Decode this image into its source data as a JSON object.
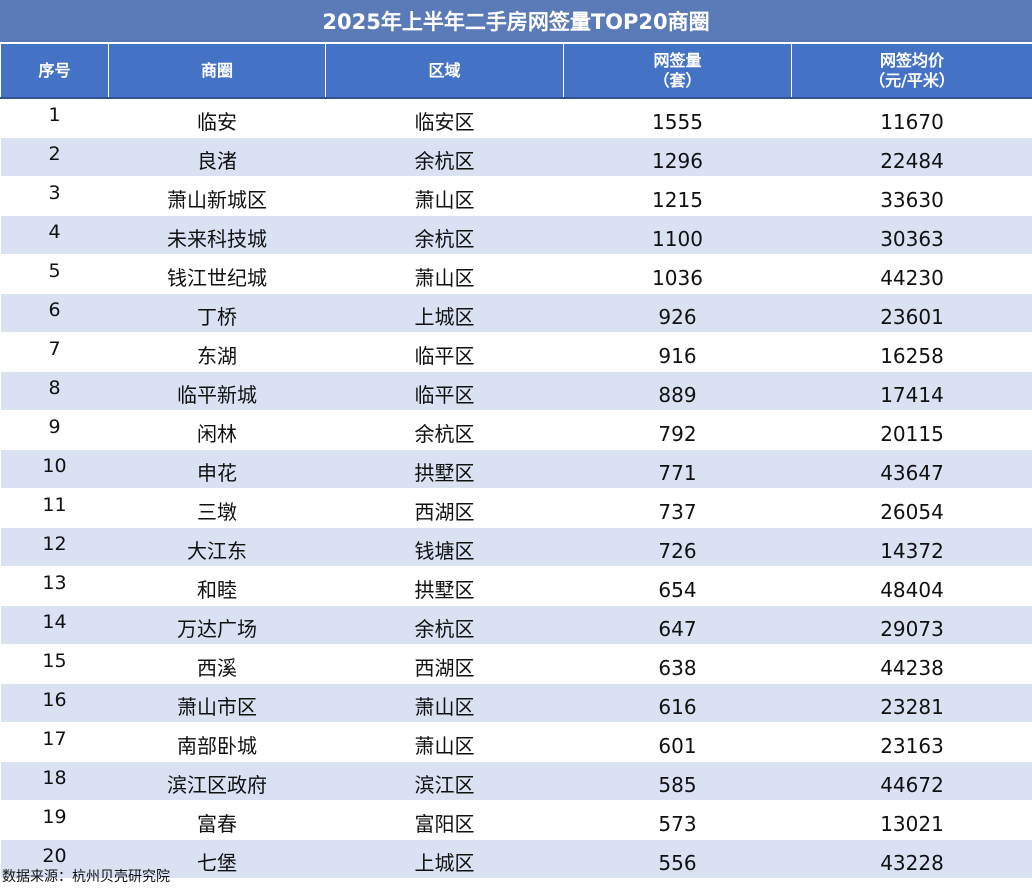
{
  "title": "2025年上半年二手房网签量TOP20商圈",
  "columns": [
    {
      "lines": [
        "序号"
      ]
    },
    {
      "lines": [
        "商圈"
      ]
    },
    {
      "lines": [
        "区域"
      ]
    },
    {
      "lines": [
        "网签量",
        "（套）"
      ]
    },
    {
      "lines": [
        "网签均价",
        "（元/平米）"
      ]
    }
  ],
  "rows": [
    {
      "rank": "1",
      "area": "临安",
      "district": "临安区",
      "deals": "1555",
      "price": "11670"
    },
    {
      "rank": "2",
      "area": "良渚",
      "district": "余杭区",
      "deals": "1296",
      "price": "22484"
    },
    {
      "rank": "3",
      "area": "萧山新城区",
      "district": "萧山区",
      "deals": "1215",
      "price": "33630"
    },
    {
      "rank": "4",
      "area": "未来科技城",
      "district": "余杭区",
      "deals": "1100",
      "price": "30363"
    },
    {
      "rank": "5",
      "area": "钱江世纪城",
      "district": "萧山区",
      "deals": "1036",
      "price": "44230"
    },
    {
      "rank": "6",
      "area": "丁桥",
      "district": "上城区",
      "deals": "926",
      "price": "23601"
    },
    {
      "rank": "7",
      "area": "东湖",
      "district": "临平区",
      "deals": "916",
      "price": "16258"
    },
    {
      "rank": "8",
      "area": "临平新城",
      "district": "临平区",
      "deals": "889",
      "price": "17414"
    },
    {
      "rank": "9",
      "area": "闲林",
      "district": "余杭区",
      "deals": "792",
      "price": "20115"
    },
    {
      "rank": "10",
      "area": "申花",
      "district": "拱墅区",
      "deals": "771",
      "price": "43647"
    },
    {
      "rank": "11",
      "area": "三墩",
      "district": "西湖区",
      "deals": "737",
      "price": "26054"
    },
    {
      "rank": "12",
      "area": "大江东",
      "district": "钱塘区",
      "deals": "726",
      "price": "14372"
    },
    {
      "rank": "13",
      "area": "和睦",
      "district": "拱墅区",
      "deals": "654",
      "price": "48404"
    },
    {
      "rank": "14",
      "area": "万达广场",
      "district": "余杭区",
      "deals": "647",
      "price": "29073"
    },
    {
      "rank": "15",
      "area": "西溪",
      "district": "西湖区",
      "deals": "638",
      "price": "44238"
    },
    {
      "rank": "16",
      "area": "萧山市区",
      "district": "萧山区",
      "deals": "616",
      "price": "23281"
    },
    {
      "rank": "17",
      "area": "南部卧城",
      "district": "萧山区",
      "deals": "601",
      "price": "23163"
    },
    {
      "rank": "18",
      "area": "滨江区政府",
      "district": "滨江区",
      "deals": "585",
      "price": "44672"
    },
    {
      "rank": "19",
      "area": "富春",
      "district": "富阳区",
      "deals": "573",
      "price": "13021"
    },
    {
      "rank": "20",
      "area": "七堡",
      "district": "上城区",
      "deals": "556",
      "price": "43228"
    }
  ],
  "source": "数据来源：杭州贝壳研究院",
  "colors": {
    "title_bg": "#5b7bb8",
    "header_bg": "#4472c4",
    "stripe": "#d9e1f2",
    "header_text": "#ffffff"
  },
  "chart_data": {
    "type": "table",
    "title": "2025年上半年二手房网签量TOP20商圈",
    "columns": [
      "序号",
      "商圈",
      "区域",
      "网签量（套）",
      "网签均价（元/平米）"
    ],
    "rows": [
      [
        1,
        "临安",
        "临安区",
        1555,
        11670
      ],
      [
        2,
        "良渚",
        "余杭区",
        1296,
        22484
      ],
      [
        3,
        "萧山新城区",
        "萧山区",
        1215,
        33630
      ],
      [
        4,
        "未来科技城",
        "余杭区",
        1100,
        30363
      ],
      [
        5,
        "钱江世纪城",
        "萧山区",
        1036,
        44230
      ],
      [
        6,
        "丁桥",
        "上城区",
        926,
        23601
      ],
      [
        7,
        "东湖",
        "临平区",
        916,
        16258
      ],
      [
        8,
        "临平新城",
        "临平区",
        889,
        17414
      ],
      [
        9,
        "闲林",
        "余杭区",
        792,
        20115
      ],
      [
        10,
        "申花",
        "拱墅区",
        771,
        43647
      ],
      [
        11,
        "三墩",
        "西湖区",
        737,
        26054
      ],
      [
        12,
        "大江东",
        "钱塘区",
        726,
        14372
      ],
      [
        13,
        "和睦",
        "拱墅区",
        654,
        48404
      ],
      [
        14,
        "万达广场",
        "余杭区",
        647,
        29073
      ],
      [
        15,
        "西溪",
        "西湖区",
        638,
        44238
      ],
      [
        16,
        "萧山市区",
        "萧山区",
        616,
        23281
      ],
      [
        17,
        "南部卧城",
        "萧山区",
        601,
        23163
      ],
      [
        18,
        "滨江区政府",
        "滨江区",
        585,
        44672
      ],
      [
        19,
        "富春",
        "富阳区",
        573,
        13021
      ],
      [
        20,
        "七堡",
        "上城区",
        556,
        43228
      ]
    ]
  }
}
